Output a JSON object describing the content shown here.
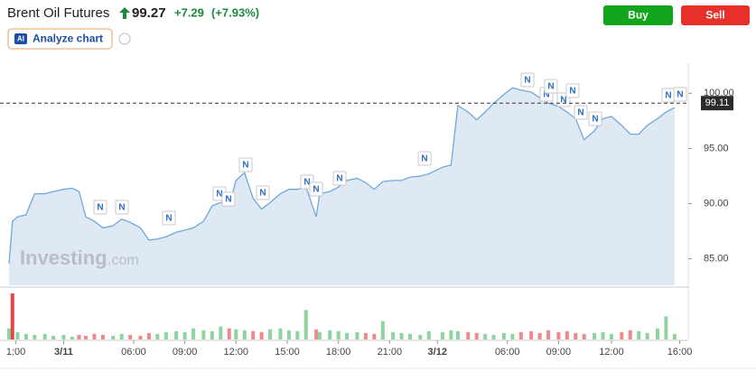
{
  "header": {
    "title": "Brent Oil Futures",
    "price": "99.27",
    "change": "+7.29",
    "change_pct": "(+7.93%)",
    "ai_badge": "AI",
    "analyze": "Analyze chart"
  },
  "buttons": {
    "buy": "Buy",
    "sell": "Sell"
  },
  "watermark": {
    "brand": "Investing",
    "suffix": ".com"
  },
  "news_marker": "N",
  "chart_data": [
    {
      "type": "area",
      "color": "#6fa8dc",
      "fill": "#dfe9f4",
      "x": [
        -0.4,
        -0.2,
        0.1,
        0.6,
        1.1,
        1.7,
        2.2,
        2.8,
        3.3,
        3.7,
        4.1,
        4.6,
        5.1,
        5.7,
        6.2,
        6.7,
        7.3,
        7.8,
        8.3,
        8.8,
        9.4,
        9.9,
        10.4,
        11.0,
        11.5,
        12.0,
        12.5,
        12.9,
        13.4,
        13.9,
        14.4,
        14.9,
        15.5,
        16.0,
        16.5,
        17.0,
        17.6,
        17.8,
        18.4,
        18.9,
        19.4,
        20.0,
        20.5,
        21.0,
        21.5,
        22.1,
        22.6,
        23.1,
        23.7,
        24.2,
        25.0,
        25.5,
        25.9,
        26.5,
        27.0,
        27.5,
        28.0,
        28.6,
        29.1,
        29.6,
        30.2,
        30.7,
        31.2,
        31.8,
        32.3,
        32.8,
        33.3,
        33.9,
        34.4,
        34.9,
        35.5,
        36.0,
        36.5,
        37.0,
        37.6,
        38.1,
        38.6
      ],
      "values": [
        84.6,
        88.4,
        88.8,
        89.0,
        90.9,
        90.9,
        91.1,
        91.3,
        91.4,
        91.1,
        88.8,
        88.4,
        87.8,
        88.0,
        88.6,
        88.3,
        87.8,
        86.7,
        86.8,
        87.0,
        87.4,
        87.6,
        87.8,
        88.4,
        89.8,
        90.1,
        89.8,
        92.1,
        92.8,
        90.5,
        89.5,
        90.1,
        90.9,
        91.3,
        91.3,
        91.5,
        88.8,
        90.9,
        91.1,
        91.5,
        92.1,
        92.3,
        91.9,
        91.3,
        92.0,
        92.1,
        92.1,
        92.4,
        92.5,
        92.7,
        93.3,
        93.5,
        98.9,
        98.3,
        97.6,
        98.3,
        99.1,
        99.9,
        100.5,
        100.3,
        100.1,
        99.6,
        99.1,
        98.8,
        98.3,
        97.7,
        95.8,
        96.6,
        97.7,
        97.9,
        97.1,
        96.3,
        96.3,
        97.1,
        97.7,
        98.3,
        98.7
      ],
      "current_price": 99.11,
      "xlim": [
        -0.4,
        39.4
      ],
      "ylim": [
        82.6,
        102.4
      ],
      "yticks": [
        {
          "value": 85,
          "label": "85.00"
        },
        {
          "value": 90,
          "label": "90.00"
        },
        {
          "value": 95,
          "label": "95.00"
        },
        {
          "value": 100,
          "label": "100.00"
        }
      ],
      "xticks": [
        {
          "value": 0,
          "label": "1:00"
        },
        {
          "value": 2.8,
          "label": "3/11"
        },
        {
          "value": 6.9,
          "label": "06:00"
        },
        {
          "value": 9.9,
          "label": "09:00"
        },
        {
          "value": 12.9,
          "label": "12:00"
        },
        {
          "value": 15.9,
          "label": "15:00"
        },
        {
          "value": 18.9,
          "label": "18:00"
        },
        {
          "value": 21.9,
          "label": "21:00"
        },
        {
          "value": 24.7,
          "label": "3/12"
        },
        {
          "value": 28.8,
          "label": "06:00"
        },
        {
          "value": 31.8,
          "label": "09:00"
        },
        {
          "value": 34.9,
          "label": "12:00"
        },
        {
          "value": 38.9,
          "label": "16:00"
        }
      ]
    },
    {
      "type": "bar",
      "up_color": "#8fd3a0",
      "down_color": "#ef8a8a",
      "ylim": [
        0,
        50
      ],
      "values": [
        12,
        50,
        8,
        6,
        5,
        6,
        4,
        5,
        3,
        5,
        4,
        6,
        5,
        4,
        6,
        5,
        4,
        7,
        6,
        8,
        9,
        8,
        12,
        10,
        9,
        14,
        12,
        11,
        10,
        9,
        8,
        11,
        12,
        10,
        9,
        32,
        11,
        8,
        10,
        9,
        7,
        8,
        7,
        6,
        20,
        8,
        7,
        6,
        5,
        9,
        8,
        10,
        9,
        8,
        7,
        6,
        5,
        7,
        6,
        8,
        9,
        7,
        10,
        8,
        9,
        7,
        6,
        7,
        8,
        6,
        8,
        10,
        9,
        7,
        12,
        25,
        6
      ]
    }
  ]
}
